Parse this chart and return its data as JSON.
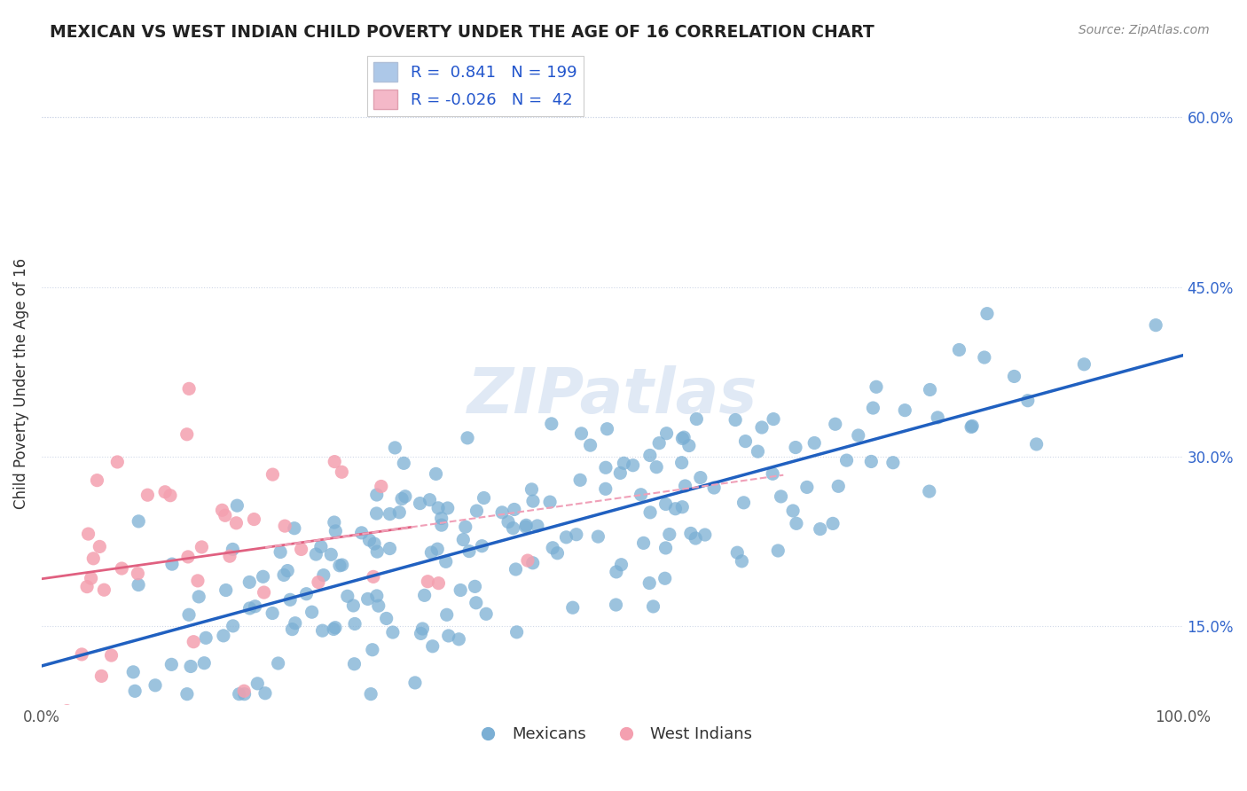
{
  "title": "MEXICAN VS WEST INDIAN CHILD POVERTY UNDER THE AGE OF 16 CORRELATION CHART",
  "source_text": "Source: ZipAtlas.com",
  "ylabel": "Child Poverty Under the Age of 16",
  "xlabel": "",
  "xlim": [
    0.0,
    1.0
  ],
  "ylim": [
    0.08,
    0.65
  ],
  "yticks": [
    0.15,
    0.3,
    0.45,
    0.6
  ],
  "ytick_labels": [
    "15.0%",
    "30.0%",
    "45.0%",
    "60.0%"
  ],
  "xticks": [
    0.0,
    1.0
  ],
  "xtick_labels": [
    "0.0%",
    "100.0%"
  ],
  "background_color": "#ffffff",
  "plot_bg_color": "#ffffff",
  "grid_color": "#d0d8e8",
  "blue_color": "#7bafd4",
  "pink_color": "#f4a0b0",
  "blue_line_color": "#2060c0",
  "pink_line_color": "#e06080",
  "pink_dash_color": "#f0a0b8",
  "r_blue": 0.841,
  "n_blue": 199,
  "r_pink": -0.026,
  "n_pink": 42,
  "watermark": "ZIPatlas",
  "legend_mexicans": "Mexicans",
  "legend_west_indians": "West Indians",
  "seed": 42
}
